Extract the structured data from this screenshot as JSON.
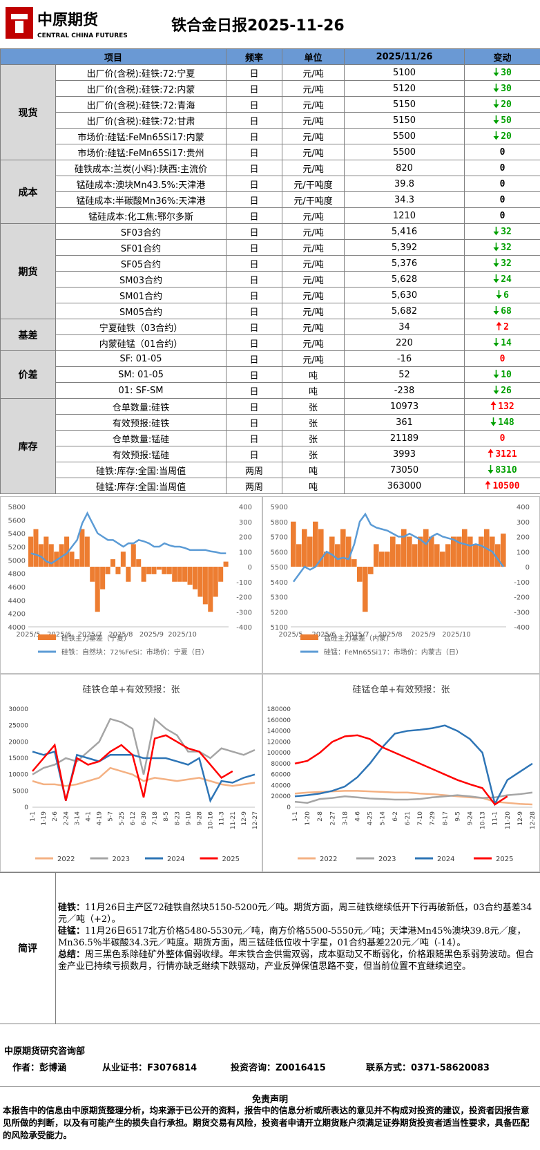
{
  "header": {
    "logo_cn": "中原期货",
    "logo_en": "CENTRAL CHINA FUTURES",
    "title": "铁合金日报2025-11-26"
  },
  "table": {
    "columns": [
      "项目",
      "频率",
      "单位",
      "2025/11/26",
      "变动"
    ],
    "groups": [
      {
        "name": "现货",
        "rows": [
          {
            "item": "出厂价(含税):硅铁:72:宁夏",
            "freq": "日",
            "unit": "元/吨",
            "value": "5100",
            "change": "30",
            "arrow": "down",
            "color": "#00a000"
          },
          {
            "item": "出厂价(含税):硅铁:72:内蒙",
            "freq": "日",
            "unit": "元/吨",
            "value": "5120",
            "change": "30",
            "arrow": "down",
            "color": "#00a000"
          },
          {
            "item": "出厂价(含税):硅铁:72:青海",
            "freq": "日",
            "unit": "元/吨",
            "value": "5150",
            "change": "20",
            "arrow": "down",
            "color": "#00a000"
          },
          {
            "item": "出厂价(含税):硅铁:72:甘肃",
            "freq": "日",
            "unit": "元/吨",
            "value": "5150",
            "change": "50",
            "arrow": "down",
            "color": "#00a000"
          },
          {
            "item": "市场价:硅锰:FeMn65Si17:内蒙",
            "freq": "日",
            "unit": "元/吨",
            "value": "5500",
            "change": "20",
            "arrow": "down",
            "color": "#00a000"
          },
          {
            "item": "市场价:硅锰:FeMn65Si17:贵州",
            "freq": "日",
            "unit": "元/吨",
            "value": "5500",
            "change": "0",
            "arrow": "none",
            "color": "#000000"
          }
        ]
      },
      {
        "name": "成本",
        "rows": [
          {
            "item": "硅铁成本:兰炭(小料):陕西:主流价",
            "freq": "日",
            "unit": "元/吨",
            "value": "820",
            "change": "0",
            "arrow": "none",
            "color": "#000000"
          },
          {
            "item": "锰硅成本:澳块Mn43.5%:天津港",
            "freq": "日",
            "unit": "元/干吨度",
            "value": "39.8",
            "change": "0",
            "arrow": "none",
            "color": "#000000"
          },
          {
            "item": "锰硅成本:半碳酸Mn36%:天津港",
            "freq": "日",
            "unit": "元/干吨度",
            "value": "34.3",
            "change": "0",
            "arrow": "none",
            "color": "#000000"
          },
          {
            "item": "锰硅成本:化工焦:鄂尔多斯",
            "freq": "日",
            "unit": "元/吨",
            "value": "1210",
            "change": "0",
            "arrow": "none",
            "color": "#000000"
          }
        ]
      },
      {
        "name": "期货",
        "rows": [
          {
            "item": "SF03合约",
            "freq": "日",
            "unit": "元/吨",
            "value": "5,416",
            "change": "32",
            "arrow": "down",
            "color": "#00a000"
          },
          {
            "item": "SF01合约",
            "freq": "日",
            "unit": "元/吨",
            "value": "5,392",
            "change": "32",
            "arrow": "down",
            "color": "#00a000"
          },
          {
            "item": "SF05合约",
            "freq": "日",
            "unit": "元/吨",
            "value": "5,376",
            "change": "32",
            "arrow": "down",
            "color": "#00a000"
          },
          {
            "item": "SM03合约",
            "freq": "日",
            "unit": "元/吨",
            "value": "5,628",
            "change": "24",
            "arrow": "down",
            "color": "#00a000"
          },
          {
            "item": "SM01合约",
            "freq": "日",
            "unit": "元/吨",
            "value": "5,630",
            "change": "6",
            "arrow": "down",
            "color": "#00a000"
          },
          {
            "item": "SM05合约",
            "freq": "日",
            "unit": "元/吨",
            "value": "5,682",
            "change": "68",
            "arrow": "down",
            "color": "#00a000"
          }
        ]
      },
      {
        "name": "基差",
        "rows": [
          {
            "item": "宁夏硅铁（03合约）",
            "freq": "日",
            "unit": "元/吨",
            "value": "34",
            "change": "2",
            "arrow": "up",
            "color": "#ff0000"
          },
          {
            "item": "内蒙硅锰（01合约）",
            "freq": "日",
            "unit": "元/吨",
            "value": "220",
            "change": "14",
            "arrow": "down",
            "color": "#00a000"
          }
        ]
      },
      {
        "name": "价差",
        "rows": [
          {
            "item": "SF: 01-05",
            "freq": "日",
            "unit": "元/吨",
            "value": "-16",
            "change": "0",
            "arrow": "none",
            "color": "#ff0000"
          },
          {
            "item": "SM: 01-05",
            "freq": "日",
            "unit": "吨",
            "value": "52",
            "change": "10",
            "arrow": "down",
            "color": "#00a000"
          },
          {
            "item": "01: SF-SM",
            "freq": "日",
            "unit": "吨",
            "value": "-238",
            "change": "26",
            "arrow": "down",
            "color": "#00a000"
          }
        ]
      },
      {
        "name": "库存",
        "rows": [
          {
            "item": "仓单数量:硅铁",
            "freq": "日",
            "unit": "张",
            "value": "10973",
            "change": "132",
            "arrow": "up",
            "color": "#ff0000"
          },
          {
            "item": "有效预报:硅铁",
            "freq": "日",
            "unit": "张",
            "value": "361",
            "change": "148",
            "arrow": "down",
            "color": "#00a000"
          },
          {
            "item": "仓单数量:锰硅",
            "freq": "日",
            "unit": "张",
            "value": "21189",
            "change": "0",
            "arrow": "none",
            "color": "#ff0000"
          },
          {
            "item": "有效预报:锰硅",
            "freq": "日",
            "unit": "张",
            "value": "3993",
            "change": "3121",
            "arrow": "up",
            "color": "#ff0000"
          },
          {
            "item": "硅铁:库存:全国:当周值",
            "freq": "两周",
            "unit": "吨",
            "value": "73050",
            "change": "8310",
            "arrow": "down",
            "color": "#00a000"
          },
          {
            "item": "硅锰:库存:全国:当周值",
            "freq": "两周",
            "unit": "吨",
            "value": "363000",
            "change": "10500",
            "arrow": "up",
            "color": "#ff0000"
          }
        ]
      }
    ]
  },
  "chart_data": [
    {
      "type": "combo",
      "categories": [
        "2025/5",
        null,
        null,
        null,
        null,
        null,
        "2025/6",
        null,
        null,
        null,
        null,
        null,
        "2025/7",
        null,
        null,
        null,
        null,
        null,
        "2025/8",
        null,
        null,
        null,
        null,
        null,
        "2025/9",
        null,
        null,
        null,
        null,
        null,
        "2025/10",
        null,
        null,
        null,
        null,
        null,
        null,
        null,
        null
      ],
      "ylim": [
        4000,
        5800
      ],
      "yticks": [
        4000,
        4200,
        4400,
        4600,
        4800,
        5000,
        5200,
        5400,
        5600,
        5800
      ],
      "y2lim": [
        -400,
        400
      ],
      "y2ticks": [
        -400,
        -300,
        -200,
        -100,
        0,
        100,
        200,
        300,
        400
      ],
      "series": [
        {
          "name": "硅铁主力基差（宁夏）",
          "color": "#ed7d31",
          "kind": "bar",
          "axis": "y2",
          "values": [
            200,
            250,
            150,
            200,
            150,
            100,
            150,
            200,
            100,
            50,
            250,
            200,
            -100,
            -300,
            -150,
            -50,
            50,
            -50,
            100,
            -100,
            150,
            50,
            -100,
            -50,
            -50,
            -20,
            -50,
            -50,
            -100,
            -100,
            -100,
            -120,
            -150,
            -200,
            -250,
            -300,
            -200,
            -100,
            34
          ]
        },
        {
          "name": "硅铁：自然块：72%FeSi：市场价：宁夏（日）",
          "color": "#5b9bd5",
          "kind": "line",
          "values": [
            5100,
            5080,
            5050,
            4980,
            4950,
            5000,
            5050,
            5100,
            5200,
            5300,
            5550,
            5700,
            5550,
            5400,
            5350,
            5300,
            5300,
            5250,
            5200,
            5250,
            5250,
            5300,
            5280,
            5250,
            5200,
            5200,
            5250,
            5220,
            5200,
            5200,
            5180,
            5150,
            5150,
            5150,
            5150,
            5130,
            5120,
            5100,
            5100
          ]
        }
      ]
    },
    {
      "type": "combo",
      "categories": [
        "2025/5",
        null,
        null,
        null,
        null,
        null,
        "2025/6",
        null,
        null,
        null,
        null,
        null,
        "2025/7",
        null,
        null,
        null,
        null,
        null,
        "2025/8",
        null,
        null,
        null,
        null,
        null,
        "2025/9",
        null,
        null,
        null,
        null,
        null,
        "2025/10",
        null,
        null,
        null,
        null,
        null,
        null,
        null,
        null
      ],
      "ylim": [
        5100,
        5900
      ],
      "yticks": [
        5100,
        5200,
        5300,
        5400,
        5500,
        5600,
        5700,
        5800,
        5900
      ],
      "y2lim": [
        -400,
        400
      ],
      "y2ticks": [
        -400,
        -300,
        -200,
        -100,
        0,
        100,
        200,
        300,
        400
      ],
      "series": [
        {
          "name": "锰硅主力基差（内蒙）",
          "color": "#ed7d31",
          "kind": "bar",
          "axis": "y2",
          "values": [
            300,
            150,
            250,
            200,
            300,
            250,
            100,
            200,
            150,
            250,
            200,
            50,
            -100,
            -300,
            -50,
            150,
            100,
            100,
            200,
            150,
            250,
            200,
            150,
            200,
            250,
            200,
            150,
            100,
            150,
            200,
            200,
            250,
            200,
            150,
            200,
            250,
            200,
            150,
            220
          ]
        },
        {
          "name": "硅锰：FeMn65Si17：市场价：内蒙古（日）",
          "color": "#5b9bd5",
          "kind": "line",
          "values": [
            5400,
            5450,
            5500,
            5480,
            5500,
            5550,
            5600,
            5580,
            5550,
            5560,
            5550,
            5650,
            5800,
            5850,
            5780,
            5760,
            5750,
            5740,
            5720,
            5700,
            5700,
            5720,
            5700,
            5680,
            5650,
            5700,
            5720,
            5700,
            5690,
            5680,
            5660,
            5650,
            5640,
            5650,
            5640,
            5620,
            5600,
            5550,
            5500
          ]
        }
      ]
    },
    {
      "type": "line",
      "title": "硅铁仓单+有效预报：张",
      "categories": [
        "1-1",
        "1-19",
        "2-6",
        "2-24",
        "3-14",
        "4-1",
        "4-19",
        "5-7",
        "5-25",
        "6-12",
        "6-30",
        "7-18",
        "8-5",
        "8-23",
        "9-10",
        "9-28",
        "10-16",
        "11-3",
        "11-21",
        "12-9",
        "12-27"
      ],
      "ylim": [
        0,
        30000
      ],
      "yticks": [
        0,
        5000,
        10000,
        15000,
        20000,
        25000,
        30000
      ],
      "series": [
        {
          "name": "2022",
          "color": "#f4b183",
          "values": [
            8000,
            7000,
            7000,
            6500,
            7000,
            8000,
            9000,
            12000,
            11000,
            10000,
            8000,
            9000,
            8500,
            8000,
            8500,
            9000,
            8000,
            7000,
            6500,
            7000,
            7500
          ]
        },
        {
          "name": "2023",
          "color": "#a5a5a5",
          "values": [
            10000,
            12000,
            13000,
            15000,
            14000,
            17000,
            20000,
            27000,
            26000,
            24000,
            10000,
            27000,
            24000,
            22000,
            17000,
            17000,
            15000,
            18000,
            17000,
            16000,
            17500
          ]
        },
        {
          "name": "2024",
          "color": "#2e75b6",
          "values": [
            17000,
            16000,
            17000,
            2000,
            16000,
            15000,
            14000,
            16000,
            16000,
            16000,
            15000,
            15000,
            15000,
            14000,
            13000,
            15000,
            2000,
            8000,
            7500,
            9000,
            10000
          ]
        },
        {
          "name": "2025",
          "color": "#ff0000",
          "values": [
            11000,
            15000,
            19000,
            2000,
            15000,
            13000,
            14000,
            17000,
            19000,
            16000,
            3000,
            21000,
            22000,
            20000,
            18000,
            17000,
            13000,
            9000,
            11000,
            null,
            null
          ]
        }
      ]
    },
    {
      "type": "line",
      "title": "硅锰仓单+有效预报：张",
      "categories": [
        "1-1",
        "1-20",
        "2-8",
        "2-27",
        "3-18",
        "4-6",
        "4-25",
        "5-14",
        "6-2",
        "6-21",
        "7-10",
        "7-29",
        "8-17",
        "9-5",
        "9-24",
        "10-13",
        "11-1",
        "11-20",
        "12-9",
        "12-28"
      ],
      "ylim": [
        0,
        180000
      ],
      "yticks": [
        0,
        20000,
        40000,
        60000,
        80000,
        100000,
        120000,
        140000,
        160000,
        180000
      ],
      "series": [
        {
          "name": "2022",
          "color": "#f4b183",
          "values": [
            25000,
            27000,
            28000,
            29000,
            30000,
            30000,
            29000,
            28000,
            27000,
            27000,
            25000,
            24000,
            22000,
            20000,
            18000,
            17000,
            10000,
            8000,
            6000,
            5000
          ]
        },
        {
          "name": "2023",
          "color": "#a5a5a5",
          "values": [
            10000,
            8000,
            15000,
            17000,
            20000,
            18000,
            16000,
            15000,
            14000,
            14000,
            15000,
            18000,
            20000,
            22000,
            20000,
            17000,
            18000,
            22000,
            24000,
            27000
          ]
        },
        {
          "name": "2024",
          "color": "#2e75b6",
          "values": [
            20000,
            22000,
            25000,
            30000,
            38000,
            55000,
            80000,
            110000,
            135000,
            140000,
            142000,
            145000,
            150000,
            140000,
            125000,
            100000,
            6000,
            50000,
            65000,
            80000
          ]
        },
        {
          "name": "2025",
          "color": "#ff0000",
          "values": [
            80000,
            85000,
            100000,
            120000,
            130000,
            132000,
            125000,
            110000,
            100000,
            90000,
            80000,
            70000,
            60000,
            50000,
            42000,
            35000,
            5000,
            20000,
            null,
            null
          ]
        }
      ]
    }
  ],
  "commentary": {
    "label": "简评",
    "paragraphs": [
      {
        "lead": "硅铁：",
        "text": "11月26日主产区72硅铁自然块5150-5200元／吨。期货方面，周三硅铁继续低开下行再破新低，03合约基差34元／吨（+2）。"
      },
      {
        "lead": "硅锰：",
        "text": "11月26日6517北方价格5480-5530元／吨，南方价格5500-5550元／吨；天津港Mn45％澳块39.8元／度，Mn36.5％半碳酸34.3元／吨度。期货方面，周三锰硅低位收十字星，01合约基差220元／吨（-14）。"
      },
      {
        "lead": "总结：",
        "text": "周三黑色系除硅矿外整体偏弱收绿。年末铁合金供需双弱，成本驱动又不断弱化，价格跟随黑色系弱势波动。但合金产业已持续亏损数月，行情亦缺乏继续下跌驱动，产业反弹保值思路不变，但当前位置不宜继续追空。"
      }
    ]
  },
  "footer": {
    "dept": "中原期货研究咨询部",
    "author": "作者：彭博涵",
    "cert": "从业证书：F3076814",
    "consult": "投资咨询：Z0016415",
    "contact": "联系方式：0371-58620083",
    "disclaimer_title": "免责声明",
    "disclaimer": "本报告中的信息由中原期货整理分析，均来源于已公开的资料，报告中的信息分析或所表达的意见并不构成对投资的建议，投资者因报告意见所做的判断，以及有可能产生的损失自行承担。期货交易有风险，投资者申请开立期货账户须满足证券期货投资者适当性要求，具备匹配的风险承受能力。"
  }
}
